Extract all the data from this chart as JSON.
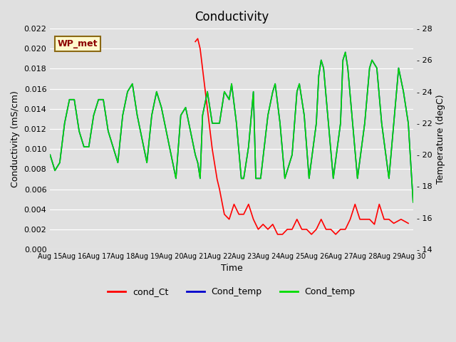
{
  "title": "Conductivity",
  "xlabel": "Time",
  "ylabel_left": "Conductivity (mS/cm)",
  "ylabel_right": "Temperature (degC)",
  "annotation": "WP_met",
  "ylim_left": [
    0.0,
    0.022
  ],
  "ylim_right": [
    14,
    28
  ],
  "yticks_left": [
    0.0,
    0.002,
    0.004,
    0.006,
    0.008,
    0.01,
    0.012,
    0.014,
    0.016,
    0.018,
    0.02,
    0.022
  ],
  "yticks_right": [
    14,
    16,
    18,
    20,
    22,
    24,
    26,
    28
  ],
  "xtick_labels": [
    "Aug 15",
    "Aug 16",
    "Aug 17",
    "Aug 18",
    "Aug 19",
    "Aug 20",
    "Aug 21",
    "Aug 22",
    "Aug 23",
    "Aug 24",
    "Aug 25",
    "Aug 26",
    "Aug 27",
    "Aug 28",
    "Aug 29",
    "Aug 30"
  ],
  "bg_color": "#e0e0e0",
  "legend_entries": [
    {
      "label": "cond_Ct",
      "color": "#ff0000"
    },
    {
      "label": "Cond_temp",
      "color": "#0000cc"
    },
    {
      "label": "Cond_temp",
      "color": "#00dd00"
    }
  ],
  "cond_Ct_x": [
    21.0,
    21.1,
    21.2,
    21.3,
    21.5,
    21.7,
    21.9,
    22.0,
    22.2,
    22.4,
    22.6,
    22.8,
    23.0,
    23.2,
    23.4,
    23.6,
    23.8,
    24.0,
    24.2,
    24.4,
    24.6,
    24.8,
    25.0,
    25.2,
    25.4,
    25.6,
    25.8,
    26.0,
    26.2,
    26.4,
    26.6,
    26.8,
    27.0,
    27.2,
    27.4,
    27.6,
    27.8,
    28.0,
    28.2,
    28.4,
    28.6,
    28.8,
    29.0,
    29.2,
    29.5,
    29.8
  ],
  "cond_Ct_y": [
    0.0207,
    0.021,
    0.02,
    0.018,
    0.014,
    0.01,
    0.007,
    0.006,
    0.0035,
    0.003,
    0.0045,
    0.0035,
    0.0035,
    0.0045,
    0.003,
    0.002,
    0.0025,
    0.002,
    0.0025,
    0.0015,
    0.0015,
    0.002,
    0.002,
    0.003,
    0.002,
    0.002,
    0.0015,
    0.002,
    0.003,
    0.002,
    0.002,
    0.0015,
    0.002,
    0.002,
    0.003,
    0.0045,
    0.003,
    0.003,
    0.003,
    0.0025,
    0.0045,
    0.003,
    0.003,
    0.0026,
    0.003,
    0.0026
  ],
  "temp_x": [
    15.0,
    15.2,
    15.4,
    15.6,
    15.8,
    16.0,
    16.2,
    16.4,
    16.6,
    16.8,
    17.0,
    17.2,
    17.4,
    17.6,
    17.8,
    18.0,
    18.2,
    18.4,
    18.6,
    18.8,
    19.0,
    19.2,
    19.4,
    19.6,
    19.8,
    20.0,
    20.2,
    20.4,
    20.6,
    20.8,
    21.0,
    21.1,
    21.2,
    21.3,
    21.5,
    21.7,
    22.0,
    22.2,
    22.4,
    22.5,
    22.7,
    22.9,
    23.0,
    23.2,
    23.4,
    23.5,
    23.7,
    24.0,
    24.2,
    24.3,
    24.5,
    24.7,
    25.0,
    25.2,
    25.3,
    25.5,
    25.7,
    26.0,
    26.1,
    26.2,
    26.3,
    26.5,
    26.7,
    27.0,
    27.1,
    27.2,
    27.3,
    27.5,
    27.7,
    28.0,
    28.2,
    28.3,
    28.5,
    28.7,
    29.0,
    29.2,
    29.4,
    29.6,
    29.8,
    30.0
  ],
  "temp_y": [
    20.0,
    19.0,
    19.5,
    22.0,
    23.5,
    23.5,
    21.5,
    20.5,
    20.5,
    22.5,
    23.5,
    23.5,
    21.5,
    20.5,
    19.5,
    22.5,
    24.0,
    24.5,
    22.5,
    21.0,
    19.5,
    22.5,
    24.0,
    23.0,
    21.5,
    20.0,
    18.5,
    22.5,
    23.0,
    21.5,
    20.0,
    19.5,
    18.5,
    22.5,
    24.0,
    22.0,
    22.0,
    24.0,
    23.5,
    24.5,
    22.0,
    18.5,
    18.5,
    20.5,
    24.0,
    18.5,
    18.5,
    22.5,
    24.0,
    24.5,
    22.0,
    18.5,
    20.0,
    24.0,
    24.5,
    22.5,
    18.5,
    22.0,
    25.0,
    26.0,
    25.5,
    22.0,
    18.5,
    22.0,
    26.0,
    26.5,
    25.5,
    22.0,
    18.5,
    22.0,
    25.5,
    26.0,
    25.5,
    22.0,
    18.5,
    22.0,
    25.5,
    24.0,
    22.0,
    17.0
  ]
}
